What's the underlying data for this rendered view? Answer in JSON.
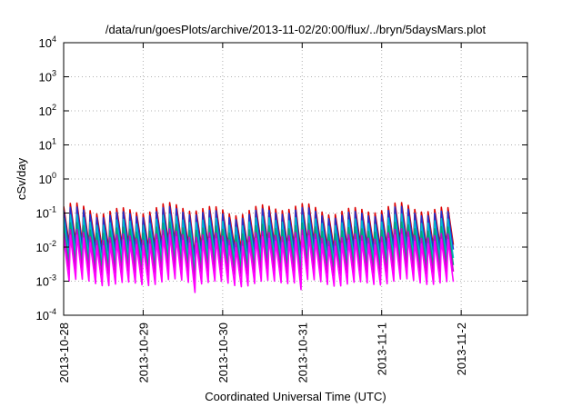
{
  "chart_data": {
    "type": "line",
    "title": "/data/run/goesPlots/archive/2013-11-02/20:00/flux/../bryn/5daysMars.plot",
    "xlabel": "Coordinated Universal Time (UTC)",
    "ylabel": "cSv/day",
    "xlim": [
      "2013-10-28",
      "2013-11-02 20:00"
    ],
    "ylim": [
      0.0001,
      10000
    ],
    "yscale": "log",
    "grid": true,
    "x_ticks": [
      "2013-10-28",
      "2013-10-29",
      "2013-10-30",
      "2013-10-31",
      "2013-11-1",
      "2013-11-2"
    ],
    "y_ticks": [
      {
        "base": "10",
        "exp": "4"
      },
      {
        "base": "10",
        "exp": "3"
      },
      {
        "base": "10",
        "exp": "2"
      },
      {
        "base": "10",
        "exp": "1"
      },
      {
        "base": "10",
        "exp": "0"
      },
      {
        "base": "10",
        "exp": "-1"
      },
      {
        "base": "10",
        "exp": "-2"
      },
      {
        "base": "10",
        "exp": "-3"
      },
      {
        "base": "10",
        "exp": "-4"
      }
    ],
    "periodic_profile": {
      "cycles_per_day": 12,
      "cycles_shown": 59,
      "drop_cycles": [
        19,
        35
      ]
    },
    "series": [
      {
        "color": "#dd0000",
        "peak": 0.13,
        "trough": 0.011
      },
      {
        "color": "#2233cc",
        "peak": 0.1,
        "trough": 0.008
      },
      {
        "color": "#00b8d0",
        "peak": 0.06,
        "trough": 0.0045
      },
      {
        "color": "#00a878",
        "peak": 0.035,
        "trough": 0.0028
      },
      {
        "color": "#cc00cc",
        "peak": 0.022,
        "trough": 0.0018
      },
      {
        "color": "#ff00ff",
        "peak": 0.015,
        "trough": 0.0009
      }
    ]
  }
}
